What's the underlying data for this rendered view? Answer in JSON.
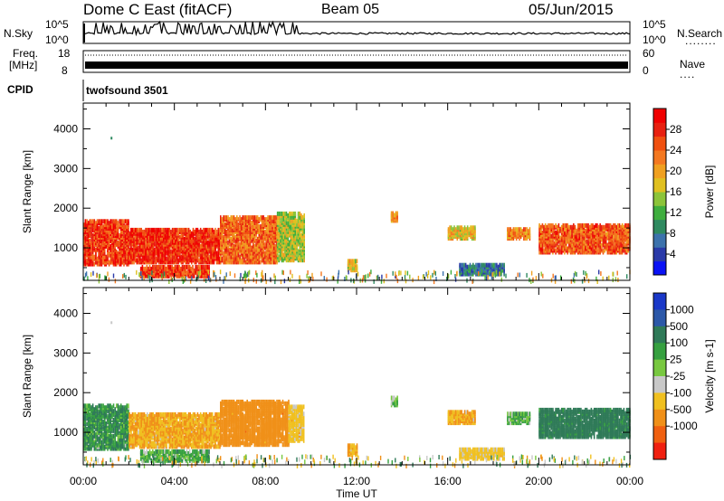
{
  "header": {
    "station": "Dome C East (fitACF)",
    "beam": "Beam 05",
    "date": "05/Jun/2015"
  },
  "panels": {
    "nsky": {
      "label": "N.Sky",
      "top_tick": "10^5",
      "bottom_tick": "10^0"
    },
    "nsearch": {
      "label": "N.Search",
      "top_tick": "10^5",
      "bottom_tick": "10^0"
    },
    "freq": {
      "label_line1": "Freq.",
      "label_line2": "[MHz]",
      "top_tick": "18",
      "bottom_tick": "8"
    },
    "nave": {
      "label": "Nave",
      "top_tick": "60",
      "bottom_tick": "0"
    },
    "cpid": {
      "label": "CPID",
      "value": "twofsound 3501"
    }
  },
  "chart_data": [
    {
      "type": "heatmap",
      "title": "Power [dB]",
      "xlabel": "Time UT",
      "ylabel": "Slant Range [km]",
      "x_ticks": [
        "00:00",
        "04:00",
        "08:00",
        "12:00",
        "16:00",
        "20:00",
        "00:00"
      ],
      "xlim_hours": [
        0,
        24
      ],
      "y_ticks": [
        "1000",
        "2000",
        "3000",
        "4000"
      ],
      "ylim": [
        180,
        4650
      ],
      "colorbar": {
        "label": "Power [dB]",
        "ticks": [
          "4",
          "8",
          "12",
          "16",
          "20",
          "24",
          "28"
        ],
        "range": [
          0,
          32
        ],
        "colors": [
          "#0a12f5",
          "#2a3aa8",
          "#3c72ac",
          "#2f8a60",
          "#3fae3f",
          "#8cc43a",
          "#e0c020",
          "#f0a020",
          "#f47820",
          "#f05010",
          "#e82010",
          "#f00000"
        ]
      },
      "echo_regions": [
        {
          "t0": 0.0,
          "t1": 2.0,
          "r0": 600,
          "r1": 1700,
          "value": 27
        },
        {
          "t0": 2.0,
          "t1": 6.0,
          "r0": 650,
          "r1": 1500,
          "value": 28
        },
        {
          "t0": 6.0,
          "t1": 8.5,
          "r0": 650,
          "r1": 1800,
          "value": 24
        },
        {
          "t0": 8.5,
          "t1": 9.7,
          "r0": 700,
          "r1": 1900,
          "value": 16
        },
        {
          "t0": 2.5,
          "t1": 5.5,
          "r0": 300,
          "r1": 550,
          "value": 27
        },
        {
          "t0": 11.6,
          "t1": 12.0,
          "r0": 450,
          "r1": 700,
          "value": 18
        },
        {
          "t0": 13.5,
          "t1": 13.8,
          "r0": 1700,
          "r1": 1900,
          "value": 20
        },
        {
          "t0": 16.0,
          "t1": 17.2,
          "r0": 1250,
          "r1": 1550,
          "value": 18
        },
        {
          "t0": 18.6,
          "t1": 19.6,
          "r0": 1250,
          "r1": 1500,
          "value": 22
        },
        {
          "t0": 20.0,
          "t1": 24.0,
          "r0": 900,
          "r1": 1600,
          "value": 25
        },
        {
          "t0": 16.5,
          "t1": 18.5,
          "r0": 350,
          "r1": 600,
          "value": 8
        }
      ]
    },
    {
      "type": "heatmap",
      "title": "Velocity [m s-1]",
      "xlabel": "Time UT",
      "ylabel": "Slant Range [km]",
      "x_ticks": [
        "00:00",
        "04:00",
        "08:00",
        "12:00",
        "16:00",
        "20:00",
        "00:00"
      ],
      "xlim_hours": [
        0,
        24
      ],
      "y_ticks": [
        "1000",
        "2000",
        "3000",
        "4000"
      ],
      "ylim": [
        180,
        4650
      ],
      "colorbar": {
        "label": "Velocity [m s-1]",
        "ticks": [
          "1000",
          "500",
          "100",
          "25",
          "-25",
          "-100",
          "-500",
          "-1000"
        ],
        "colors": [
          "#1a38c8",
          "#2c58a8",
          "#2f7a58",
          "#36a040",
          "#78c840",
          "#c8c8c8",
          "#f0c020",
          "#f09018",
          "#f06010",
          "#f02010"
        ]
      },
      "echo_regions": [
        {
          "t0": 0.0,
          "t1": 2.0,
          "r0": 600,
          "r1": 1700,
          "value": 100
        },
        {
          "t0": 2.0,
          "t1": 6.0,
          "r0": 650,
          "r1": 1500,
          "value": -100
        },
        {
          "t0": 6.0,
          "t1": 9.0,
          "r0": 700,
          "r1": 1800,
          "value": -300
        },
        {
          "t0": 9.0,
          "t1": 9.7,
          "r0": 800,
          "r1": 1700,
          "value": -50
        },
        {
          "t0": 2.5,
          "t1": 5.5,
          "r0": 300,
          "r1": 550,
          "value": 60
        },
        {
          "t0": 11.6,
          "t1": 12.0,
          "r0": 450,
          "r1": 700,
          "value": -100
        },
        {
          "t0": 13.5,
          "t1": 13.8,
          "r0": 1700,
          "r1": 1900,
          "value": 60
        },
        {
          "t0": 16.0,
          "t1": 17.2,
          "r0": 1250,
          "r1": 1550,
          "value": -100
        },
        {
          "t0": 18.6,
          "t1": 19.6,
          "r0": 1250,
          "r1": 1500,
          "value": 60
        },
        {
          "t0": 20.0,
          "t1": 24.0,
          "r0": 900,
          "r1": 1600,
          "value": 200
        },
        {
          "t0": 16.5,
          "t1": 18.5,
          "r0": 350,
          "r1": 600,
          "value": -50
        }
      ]
    }
  ]
}
